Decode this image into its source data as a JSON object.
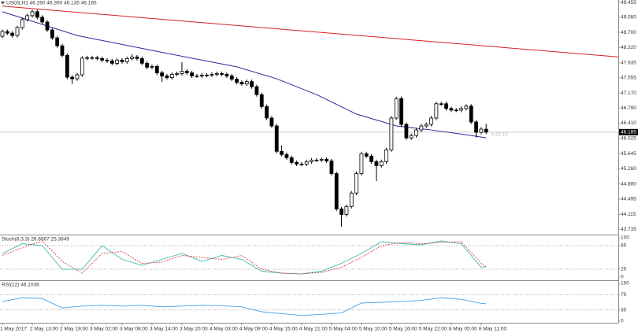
{
  "chart_data": [
    {
      "type": "candlestick",
      "title": "USOILH1 46.260 46.390 46.135 46.185",
      "ohlc": [
        [
          48.6,
          48.77,
          48.55,
          48.72
        ],
        [
          48.72,
          48.77,
          48.63,
          48.68
        ],
        [
          48.68,
          48.73,
          48.57,
          48.62
        ],
        [
          48.62,
          48.87,
          48.57,
          48.82
        ],
        [
          48.82,
          49.07,
          48.77,
          49.02
        ],
        [
          49.02,
          49.17,
          48.97,
          49.12
        ],
        [
          49.12,
          49.27,
          49.07,
          49.22
        ],
        [
          49.22,
          49.27,
          49.03,
          49.08
        ],
        [
          49.08,
          49.13,
          48.91,
          48.96
        ],
        [
          48.96,
          49.01,
          48.71,
          48.76
        ],
        [
          48.76,
          48.81,
          48.51,
          48.56
        ],
        [
          48.56,
          48.61,
          48.31,
          48.36
        ],
        [
          48.36,
          48.41,
          48.07,
          48.12
        ],
        [
          48.12,
          48.17,
          47.52,
          47.57
        ],
        [
          47.57,
          47.62,
          47.4,
          47.53
        ],
        [
          47.53,
          47.68,
          47.48,
          47.63
        ],
        [
          47.63,
          48.1,
          47.58,
          48.05
        ],
        [
          48.05,
          48.11,
          48.0,
          48.06
        ],
        [
          48.06,
          48.11,
          48.01,
          48.06
        ],
        [
          48.06,
          48.11,
          47.99,
          48.04
        ],
        [
          48.04,
          48.09,
          47.95,
          48.0
        ],
        [
          48.0,
          48.05,
          47.93,
          47.98
        ],
        [
          47.98,
          48.03,
          47.87,
          47.92
        ],
        [
          47.92,
          48.05,
          47.87,
          48.0
        ],
        [
          48.0,
          48.05,
          47.91,
          47.96
        ],
        [
          47.96,
          48.09,
          47.91,
          48.04
        ],
        [
          48.04,
          48.15,
          47.99,
          48.08
        ],
        [
          48.08,
          48.13,
          47.99,
          48.04
        ],
        [
          48.04,
          48.09,
          47.87,
          47.92
        ],
        [
          47.92,
          47.97,
          47.77,
          47.82
        ],
        [
          47.82,
          47.89,
          47.77,
          47.84
        ],
        [
          47.84,
          47.89,
          47.63,
          47.68
        ],
        [
          47.68,
          47.73,
          47.45,
          47.6
        ],
        [
          47.6,
          47.65,
          47.51,
          47.56
        ],
        [
          47.56,
          47.69,
          47.51,
          47.64
        ],
        [
          47.64,
          47.71,
          47.59,
          47.66
        ],
        [
          47.66,
          47.95,
          47.61,
          47.72
        ],
        [
          47.72,
          47.77,
          47.63,
          47.68
        ],
        [
          47.68,
          47.73,
          47.55,
          47.6
        ],
        [
          47.6,
          47.65,
          47.55,
          47.6
        ],
        [
          47.6,
          47.67,
          47.55,
          47.62
        ],
        [
          47.62,
          47.67,
          47.57,
          47.62
        ],
        [
          47.62,
          47.69,
          47.57,
          47.64
        ],
        [
          47.64,
          47.71,
          47.59,
          47.66
        ],
        [
          47.66,
          47.71,
          47.59,
          47.64
        ],
        [
          47.64,
          47.69,
          47.55,
          47.6
        ],
        [
          47.6,
          47.65,
          47.47,
          47.52
        ],
        [
          47.52,
          47.57,
          47.39,
          47.44
        ],
        [
          47.44,
          47.49,
          47.35,
          47.4
        ],
        [
          47.4,
          47.51,
          47.35,
          47.46
        ],
        [
          47.46,
          47.51,
          47.28,
          47.33
        ],
        [
          47.33,
          47.38,
          47.08,
          47.13
        ],
        [
          47.13,
          47.18,
          46.78,
          46.83
        ],
        [
          46.83,
          46.88,
          46.49,
          46.54
        ],
        [
          46.54,
          46.59,
          46.29,
          46.34
        ],
        [
          46.34,
          46.39,
          45.65,
          45.7
        ],
        [
          45.7,
          45.85,
          45.57,
          45.62
        ],
        [
          45.62,
          45.67,
          45.49,
          45.54
        ],
        [
          45.54,
          45.59,
          45.37,
          45.42
        ],
        [
          45.42,
          45.47,
          45.33,
          45.38
        ],
        [
          45.38,
          45.43,
          45.33,
          45.38
        ],
        [
          45.38,
          45.49,
          45.33,
          45.44
        ],
        [
          45.44,
          45.53,
          45.39,
          45.48
        ],
        [
          45.48,
          45.53,
          45.43,
          45.48
        ],
        [
          45.48,
          45.55,
          45.43,
          45.5
        ],
        [
          45.5,
          45.55,
          45.41,
          45.46
        ],
        [
          45.46,
          45.51,
          45.09,
          45.14
        ],
        [
          45.14,
          45.19,
          44.2,
          44.25
        ],
        [
          44.25,
          44.3,
          43.8,
          44.11
        ],
        [
          44.11,
          44.36,
          44.06,
          44.31
        ],
        [
          44.31,
          44.7,
          44.26,
          44.65
        ],
        [
          44.65,
          45.19,
          44.6,
          45.14
        ],
        [
          45.14,
          45.69,
          45.09,
          45.64
        ],
        [
          45.64,
          45.69,
          45.53,
          45.58
        ],
        [
          45.58,
          45.63,
          45.39,
          45.44
        ],
        [
          45.44,
          45.49,
          44.95,
          45.34
        ],
        [
          45.34,
          45.49,
          45.29,
          45.44
        ],
        [
          45.44,
          45.79,
          45.39,
          45.74
        ],
        [
          45.74,
          46.59,
          45.69,
          46.54
        ],
        [
          46.54,
          47.08,
          46.49,
          47.03
        ],
        [
          47.03,
          47.08,
          46.33,
          46.38
        ],
        [
          46.38,
          46.43,
          45.99,
          46.04
        ],
        [
          46.04,
          46.15,
          45.99,
          46.1
        ],
        [
          46.1,
          46.29,
          46.05,
          46.24
        ],
        [
          46.24,
          46.39,
          46.19,
          46.34
        ],
        [
          46.34,
          46.43,
          46.29,
          46.38
        ],
        [
          46.38,
          46.59,
          46.33,
          46.54
        ],
        [
          46.54,
          46.95,
          46.49,
          46.9
        ],
        [
          46.9,
          46.95,
          46.85,
          46.9
        ],
        [
          46.9,
          46.95,
          46.73,
          46.78
        ],
        [
          46.78,
          46.83,
          46.69,
          46.74
        ],
        [
          46.74,
          46.79,
          46.69,
          46.74
        ],
        [
          46.74,
          46.83,
          46.69,
          46.78
        ],
        [
          46.78,
          46.89,
          46.73,
          46.84
        ],
        [
          46.84,
          46.89,
          46.39,
          46.44
        ],
        [
          46.44,
          46.49,
          46.05,
          46.18
        ],
        [
          46.18,
          46.31,
          46.13,
          46.26
        ],
        [
          46.26,
          46.39,
          46.135,
          46.185
        ]
      ],
      "up_color": "#ffffff",
      "down_color": "#000000",
      "lines": [
        {
          "color": "#2a2aa0",
          "x": [
            0,
            15,
            31,
            47,
            55,
            63,
            71,
            79,
            86,
            94,
            97
          ],
          "values": [
            49.22,
            48.62,
            48.22,
            47.83,
            47.53,
            47.13,
            46.64,
            46.34,
            46.24,
            46.1,
            46.04
          ]
        },
        {
          "color": "#d42020",
          "x": [
            0,
            123.5
          ],
          "values": [
            49.36,
            48.08
          ]
        }
      ],
      "price_label": 46.185,
      "timer": "0:42:15",
      "xlim": [
        -0.474,
        123.5
      ],
      "ylim": [
        43.622,
        49.515
      ],
      "yticks": [
        {
          "value": 49.455,
          "label": "49.455"
        },
        {
          "value": 49.08,
          "label": "49.080"
        },
        {
          "value": 48.7,
          "label": "48.700"
        },
        {
          "value": 48.32,
          "label": "48.320"
        },
        {
          "value": 47.935,
          "label": "47.935"
        },
        {
          "value": 47.555,
          "label": "47.555"
        },
        {
          "value": 47.17,
          "label": "47.170"
        },
        {
          "value": 46.79,
          "label": "46.790"
        },
        {
          "value": 46.41,
          "label": "46.410"
        },
        {
          "value": 46.025,
          "label": "46.025"
        },
        {
          "value": 45.645,
          "label": "45.645"
        },
        {
          "value": 45.26,
          "label": "45.260"
        },
        {
          "value": 44.88,
          "label": "44.880"
        },
        {
          "value": 44.495,
          "label": "44.495"
        },
        {
          "value": 44.115,
          "label": "44.115"
        },
        {
          "value": 43.735,
          "label": "43.735"
        }
      ]
    },
    {
      "type": "line",
      "title": "Stoch(8,3,3) 26.6667 25.3849",
      "x": [
        0,
        4,
        8,
        12,
        16,
        20,
        24,
        28,
        32,
        36,
        40,
        44,
        48,
        52,
        56,
        60,
        64,
        68,
        72,
        76,
        80,
        84,
        88,
        92,
        96,
        97
      ],
      "series": [
        {
          "color": "#3fb8b0",
          "values": [
            60,
            85,
            80,
            20,
            20,
            80,
            45,
            30,
            45,
            60,
            40,
            55,
            45,
            15,
            10,
            8,
            15,
            35,
            60,
            90,
            85,
            82,
            92,
            85,
            25,
            26.67
          ]
        },
        {
          "color": "#e04040",
          "dash": true,
          "values": [
            55,
            75,
            92,
            40,
            10,
            60,
            65,
            35,
            38,
            55,
            50,
            45,
            55,
            20,
            10,
            8,
            12,
            25,
            50,
            80,
            88,
            85,
            88,
            90,
            35,
            25.38
          ]
        }
      ],
      "xlim": [
        -0.474,
        123.5
      ],
      "ylim": [
        0,
        100
      ],
      "yticks": [
        0,
        20,
        80,
        100
      ],
      "level_lines": true
    },
    {
      "type": "line",
      "title": "RSI(12) 46.1036",
      "x": [
        0,
        4,
        8,
        12,
        16,
        20,
        24,
        28,
        32,
        36,
        40,
        44,
        48,
        52,
        56,
        60,
        64,
        68,
        72,
        76,
        80,
        84,
        88,
        92,
        96,
        97
      ],
      "series": [
        {
          "color": "#4a9ee0",
          "values": [
            52,
            62,
            60,
            35,
            40,
            42,
            40,
            42,
            38,
            40,
            42,
            41,
            38,
            25,
            20,
            15,
            18,
            22,
            48,
            50,
            52,
            55,
            62,
            58,
            47,
            46.1
          ]
        }
      ],
      "xlim": [
        -0.474,
        123.5
      ],
      "ylim": [
        0,
        100
      ],
      "yticks": [
        0,
        30,
        70,
        100
      ],
      "level_lines": true,
      "xticks": [
        {
          "value": 0,
          "label": "1 May 2017"
        },
        {
          "value": 6,
          "label": "2 May 13:00"
        },
        {
          "value": 12,
          "label": "2 May 19:00"
        },
        {
          "value": 18,
          "label": "3 May 02:00"
        },
        {
          "value": 24,
          "label": "3 May 08:00"
        },
        {
          "value": 30,
          "label": "3 May 14:00"
        },
        {
          "value": 36,
          "label": "3 May 20:00"
        },
        {
          "value": 42,
          "label": "4 May 03:00"
        },
        {
          "value": 48,
          "label": "4 May 09:00"
        },
        {
          "value": 54,
          "label": "4 May 15:00"
        },
        {
          "value": 60,
          "label": "4 May 21:00"
        },
        {
          "value": 66,
          "label": "5 May 04:00"
        },
        {
          "value": 72,
          "label": "5 May 10:00"
        },
        {
          "value": 78,
          "label": "5 May 16:00"
        },
        {
          "value": 84,
          "label": "5 May 22:00"
        },
        {
          "value": 90,
          "label": "8 May 05:00"
        },
        {
          "value": 96,
          "label": "8 May 11:00"
        }
      ]
    }
  ]
}
